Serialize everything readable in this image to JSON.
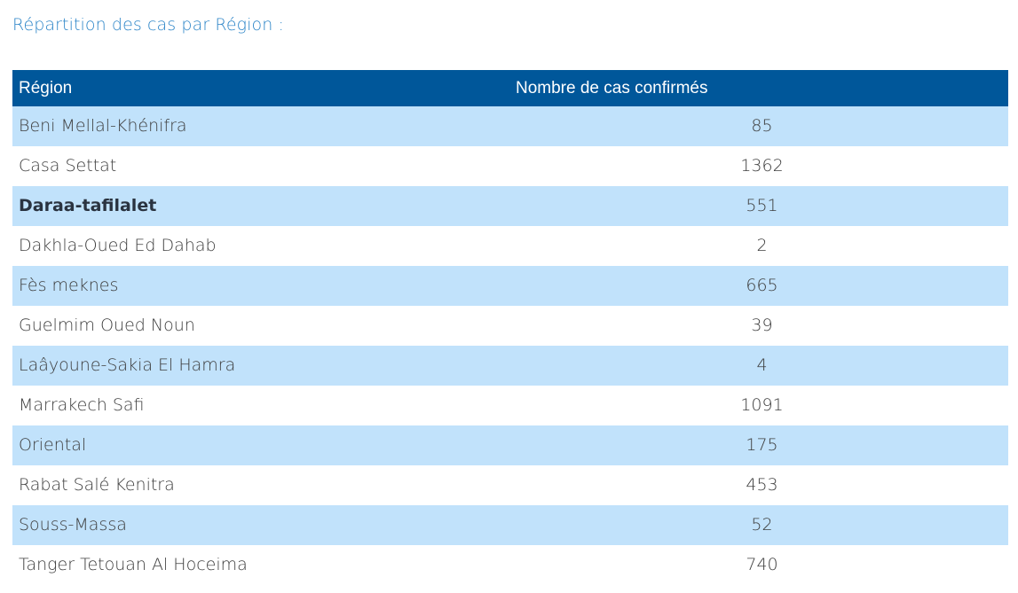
{
  "heading": "Répartition des cas par Région :",
  "table": {
    "headers": {
      "region": "Région",
      "count": "Nombre de cas confirmés"
    },
    "rows": [
      {
        "region": "Beni Mellal-Khénifra",
        "count": "85"
      },
      {
        "region": "Casa Settat",
        "count": "1362"
      },
      {
        "region": "Daraa-tafilalet",
        "count": "551"
      },
      {
        "region": "Dakhla-Oued Ed Dahab",
        "count": "2"
      },
      {
        "region": "Fès meknes",
        "count": "665"
      },
      {
        "region": "Guelmim Oued Noun",
        "count": "39"
      },
      {
        "region": "Laâyoune-Sakia El Hamra",
        "count": "4"
      },
      {
        "region": "Marrakech Safi",
        "count": "1091"
      },
      {
        "region": "Oriental",
        "count": "175"
      },
      {
        "region": "Rabat Salé Kenitra",
        "count": "453"
      },
      {
        "region": "Souss-Massa",
        "count": "52"
      },
      {
        "region": "Tanger Tetouan Al Hoceima",
        "count": "740"
      }
    ]
  },
  "colors": {
    "heading": "#2e86c8",
    "header_bg": "#00579a",
    "stripe_bg": "#c1e2fb"
  }
}
